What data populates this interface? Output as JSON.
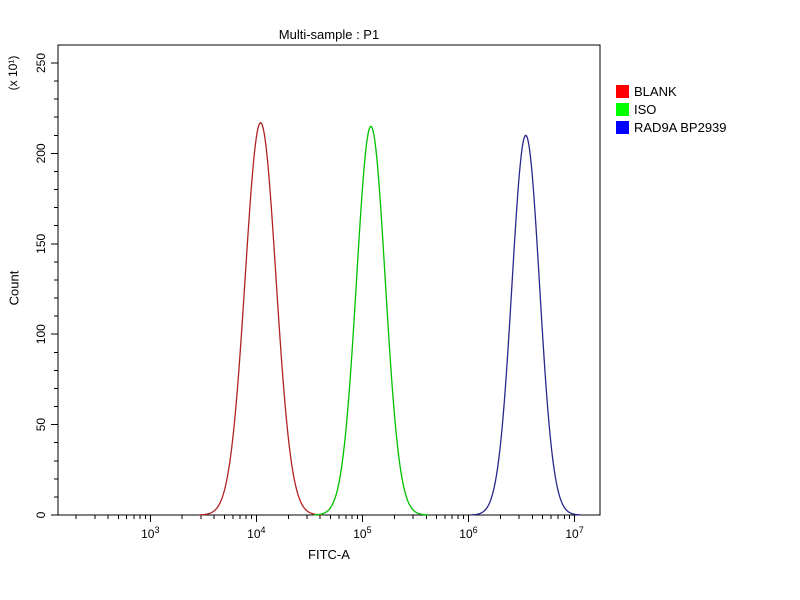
{
  "title": "Multi-sample : P1",
  "chart_data": {
    "type": "line",
    "subtype": "flow-cytometry-fluorescence-histogram",
    "title": "Multi-sample : P1",
    "xlabel": "FITC-A",
    "ylabel": "Count",
    "y_axis_multiplier": "(x 10¹)",
    "x_scale": "log10",
    "x_range_log10": [
      2.13,
      7.24
    ],
    "x_major_ticks": [
      {
        "log10": 3,
        "label_base": "10",
        "label_exp": "3"
      },
      {
        "log10": 4,
        "label_base": "10",
        "label_exp": "4"
      },
      {
        "log10": 5,
        "label_base": "10",
        "label_exp": "5"
      },
      {
        "log10": 6,
        "label_base": "10",
        "label_exp": "6"
      },
      {
        "log10": 7,
        "label_base": "10",
        "label_exp": "7"
      }
    ],
    "ylim": [
      0,
      250
    ],
    "y_major_ticks": [
      0,
      50,
      100,
      150,
      200,
      250
    ],
    "y_minor_tick_step": 10,
    "grid": false,
    "legend_position": "top-right",
    "series": [
      {
        "name": "BLANK",
        "curve_color": "#b22222",
        "legend_color": "#ff0000",
        "peak_log10": 4.04,
        "peak_x_value": 11000,
        "sigma_log10": 0.145,
        "peak_height": 217
      },
      {
        "name": "ISO",
        "curve_color": "#00c000",
        "legend_color": "#00ff00",
        "peak_log10": 5.08,
        "peak_x_value": 120000,
        "sigma_log10": 0.135,
        "peak_height": 215
      },
      {
        "name": "RAD9A BP2939",
        "curve_color": "#28288c",
        "legend_color": "#0000ff",
        "peak_log10": 6.54,
        "peak_x_value": 3500000,
        "sigma_log10": 0.13,
        "peak_height": 210
      }
    ]
  }
}
